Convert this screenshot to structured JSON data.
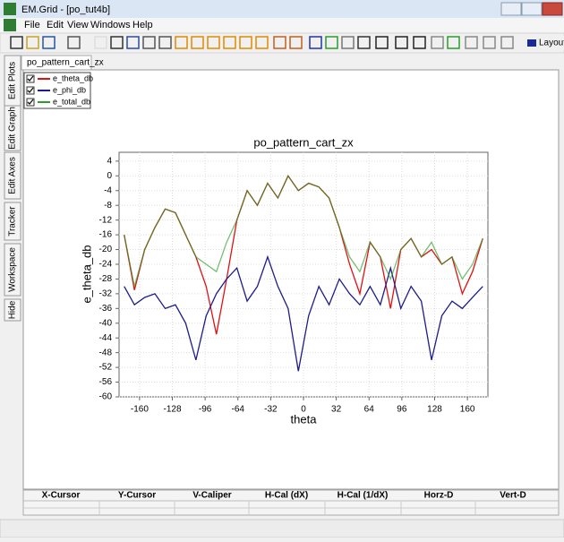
{
  "window": {
    "title": "EM.Grid - [po_tut4b]"
  },
  "menu": [
    "File",
    "Edit",
    "View",
    "Windows",
    "Help"
  ],
  "toolbar": {
    "layout_button": "Layout"
  },
  "document_tab": "po_pattern_cart_zx",
  "side_tabs": [
    "Edit Plots",
    "Edit Graph",
    "Edit Axes",
    "Tracker",
    "Workspace",
    "Hide"
  ],
  "cursor_table": {
    "headers": [
      "X-Cursor",
      "Y-Cursor",
      "V-Caliper",
      "H-Cal (dX)",
      "H-Cal (1/dX)",
      "Horz-D",
      "Vert-D"
    ]
  },
  "chart_data": {
    "type": "line",
    "title": "po_pattern_cart_zx",
    "x_label": "theta",
    "y_label": "e_theta_db",
    "xlim": [
      -180,
      180
    ],
    "ylim": [
      -60,
      6.4
    ],
    "xticks": [
      -160,
      -128,
      -96,
      -64,
      -32,
      0,
      32,
      64,
      96,
      128,
      160
    ],
    "yticks": [
      4,
      0,
      -4,
      -8,
      -12,
      -16,
      -20,
      -24,
      -28,
      -32,
      -36,
      -40,
      -44,
      -48,
      -52,
      -56,
      -60
    ],
    "grid": true,
    "legend": "top-left",
    "x": [
      -175,
      -165,
      -155,
      -145,
      -135,
      -125,
      -115,
      -105,
      -95,
      -85,
      -75,
      -65,
      -55,
      -45,
      -35,
      -25,
      -15,
      -5,
      5,
      15,
      25,
      35,
      45,
      55,
      65,
      75,
      85,
      95,
      105,
      115,
      125,
      135,
      145,
      155,
      165,
      175
    ],
    "series": [
      {
        "name": "e_theta_db",
        "color": "#e01010",
        "values": [
          -16,
          -31,
          -20,
          -14,
          -9,
          -10,
          -16,
          -22,
          -30,
          -43,
          -28,
          -12,
          -4,
          -8,
          -2,
          -6,
          0,
          -4,
          -2,
          -3,
          -6,
          -14,
          -24,
          -32,
          -18,
          -22,
          -36,
          -20,
          -17,
          -22,
          -20,
          -24,
          -22,
          -32,
          -26,
          -17
        ]
      },
      {
        "name": "e_phi_db",
        "color": "#1c1c8a",
        "values": [
          -30,
          -35,
          -33,
          -32,
          -36,
          -35,
          -40,
          -50,
          -38,
          -32,
          -28,
          -25,
          -34,
          -30,
          -22,
          -30,
          -36,
          -53,
          -38,
          -30,
          -35,
          -28,
          -32,
          -35,
          -30,
          -35,
          -25,
          -36,
          -30,
          -34,
          -50,
          -38,
          -34,
          -36,
          -33,
          -30
        ]
      },
      {
        "name": "e_total_db",
        "color": "#2a9d2a",
        "values": [
          -16,
          -30,
          -20,
          -14,
          -9,
          -10,
          -16,
          -22,
          -24,
          -26,
          -18,
          -12,
          -4,
          -8,
          -2,
          -6,
          0,
          -4,
          -2,
          -3,
          -6,
          -14,
          -22,
          -26,
          -18,
          -22,
          -28,
          -20,
          -17,
          -22,
          -18,
          -24,
          -22,
          -28,
          -24,
          -17
        ]
      }
    ]
  }
}
